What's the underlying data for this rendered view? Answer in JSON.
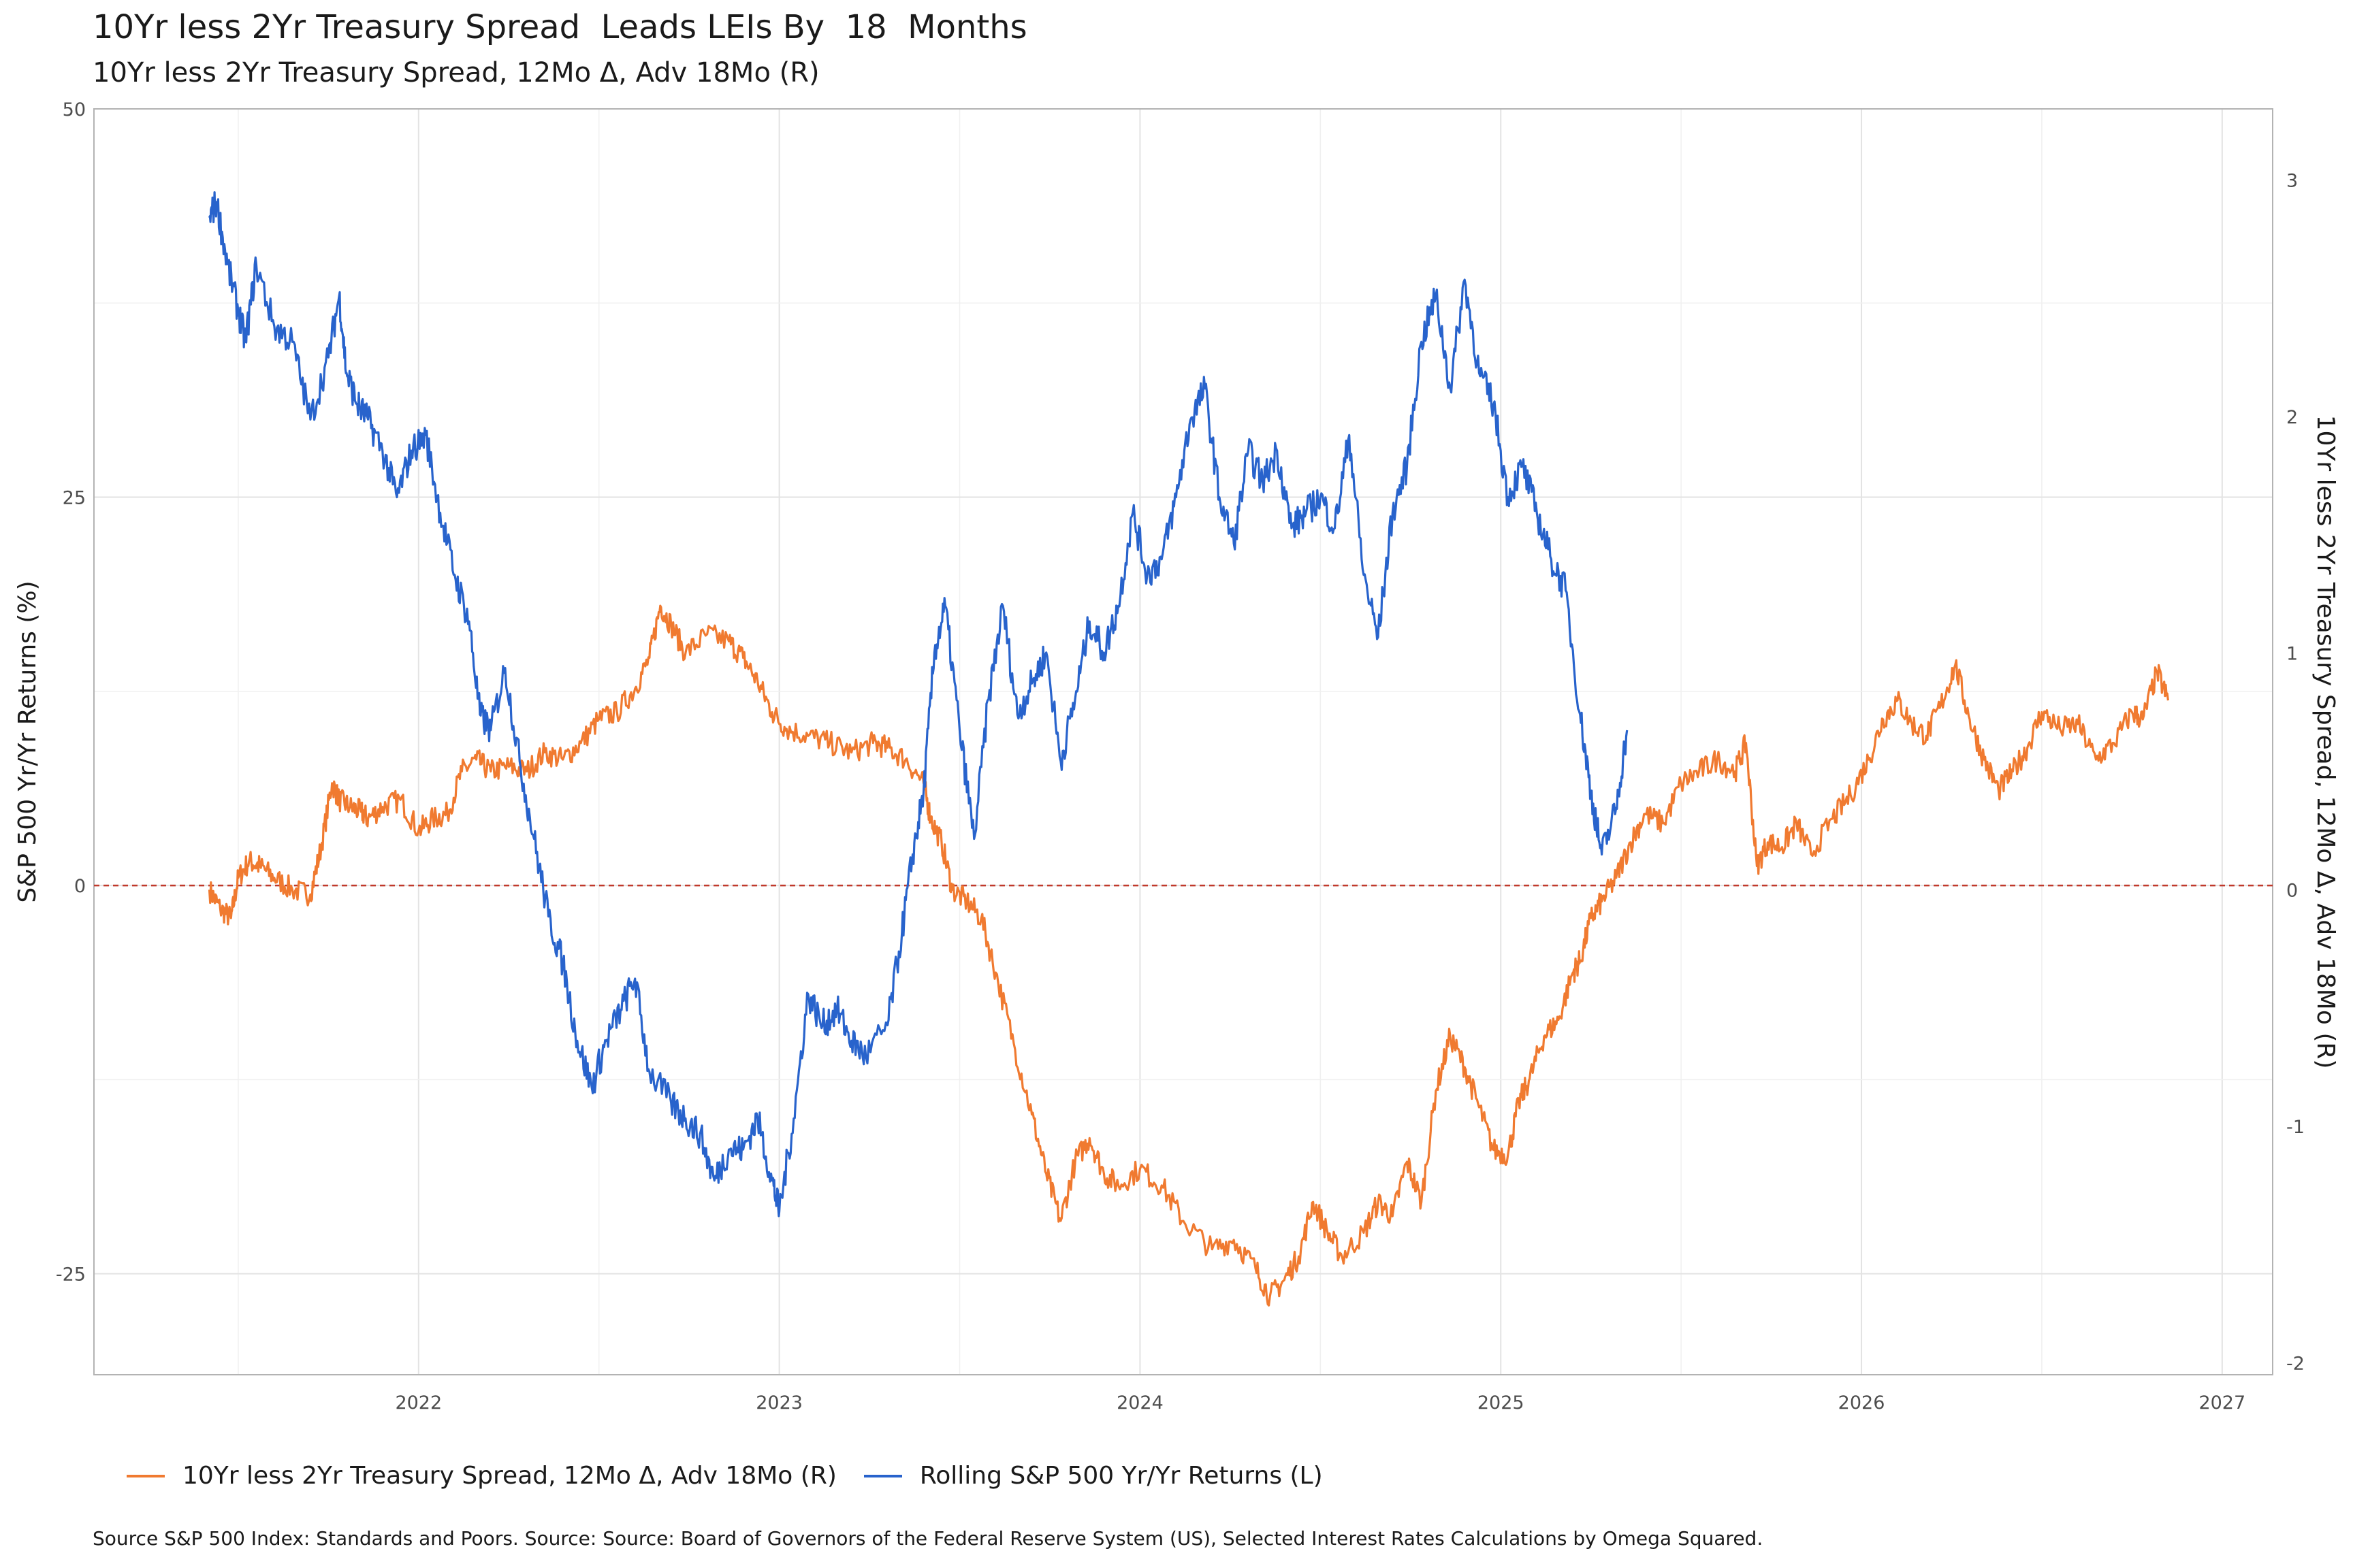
{
  "title": "10Yr less 2Yr Treasury Spread  Leads LEIs By  18  Months",
  "subtitle": "10Yr less 2Yr Treasury Spread, 12Mo Δ, Adv 18Mo (R)",
  "caption": "Source S&P 500 Index: Standards and Poors. Source: Source: Board of Governors of the Federal Reserve System (US), Selected Interest Rates Calculations by Omega Squared.",
  "chart_data": {
    "type": "line",
    "x_axis": {
      "ticks": [
        2022,
        2023,
        2024,
        2025,
        2026,
        2027
      ],
      "tick_labels": [
        "2022",
        "2023",
        "2024",
        "2025",
        "2026",
        "2027"
      ],
      "range": [
        2021.1,
        2027.14
      ]
    },
    "y_left": {
      "label": "S&P 500 Yr/Yr Returns (%)",
      "range": [
        -31.5,
        50
      ],
      "ticks": [
        -25,
        0,
        25,
        50
      ],
      "tick_labels": [
        "-25",
        "0",
        "25",
        "50"
      ]
    },
    "y_right": {
      "label": "10Yr less 2Yr Treasury Spread, 12Mo Δ, Adv 18Mo (R)",
      "range": [
        -2.05,
        3.3
      ],
      "ticks": [
        -2,
        -1,
        0,
        1,
        2,
        3
      ],
      "tick_labels": [
        "-2",
        "-1",
        "0",
        "1",
        "2",
        "3"
      ]
    },
    "reference_line": {
      "y": 0,
      "axis": "left",
      "style": "dashed",
      "color": "#c0392b"
    },
    "grid": true,
    "legend_position": "bottom",
    "series": [
      {
        "name": "10Yr less 2Yr Treasury Spread, 12Mo Δ, Adv 18Mo (R)",
        "axis": "right",
        "color": "#f07a30",
        "x": [
          2021.42,
          2021.45,
          2021.48,
          2021.5,
          2021.53,
          2021.56,
          2021.6,
          2021.65,
          2021.7,
          2021.73,
          2021.76,
          2021.78,
          2021.81,
          2021.84,
          2021.86,
          2021.9,
          2021.95,
          2022.0,
          2022.04,
          2022.08,
          2022.12,
          2022.16,
          2022.2,
          2022.25,
          2022.3,
          2022.35,
          2022.4,
          2022.45,
          2022.5,
          2022.55,
          2022.6,
          2022.64,
          2022.67,
          2022.7,
          2022.74,
          2022.8,
          2022.86,
          2022.9,
          2022.94,
          2022.98,
          2023.02,
          2023.08,
          2023.14,
          2023.2,
          2023.26,
          2023.3,
          2023.35,
          2023.4,
          2023.42,
          2023.45,
          2023.48,
          2023.52,
          2023.56,
          2023.6,
          2023.65,
          2023.7,
          2023.74,
          2023.78,
          2023.82,
          2023.86,
          2023.9,
          2023.94,
          2024.0,
          2024.06,
          2024.12,
          2024.2,
          2024.26,
          2024.32,
          2024.36,
          2024.4,
          2024.44,
          2024.48,
          2024.52,
          2024.56,
          2024.62,
          2024.66,
          2024.7,
          2024.74,
          2024.78,
          2024.82,
          2024.86,
          2024.9,
          2024.94,
          2024.98,
          2025.02,
          2025.05,
          2025.08,
          2025.12,
          2025.16,
          2025.2,
          2025.22,
          2025.25,
          2025.28,
          2025.32,
          2025.36,
          2025.4,
          2025.45,
          2025.5,
          2025.55,
          2025.6,
          2025.65,
          2025.68,
          2025.71,
          2025.74,
          2025.78,
          2025.82,
          2025.86,
          2025.92,
          2025.97,
          2026.02,
          2026.06,
          2026.1,
          2026.14,
          2026.18,
          2026.22,
          2026.26,
          2026.3,
          2026.34,
          2026.38,
          2026.42,
          2026.46,
          2026.5,
          2026.55,
          2026.6,
          2026.65,
          2026.7,
          2026.75,
          2026.78,
          2026.82,
          2026.85
        ],
        "y": [
          0.0,
          -0.08,
          -0.12,
          0.05,
          0.12,
          0.1,
          0.05,
          0.0,
          -0.02,
          0.18,
          0.45,
          0.38,
          0.35,
          0.33,
          0.3,
          0.35,
          0.38,
          0.25,
          0.3,
          0.32,
          0.5,
          0.55,
          0.5,
          0.52,
          0.5,
          0.58,
          0.55,
          0.62,
          0.72,
          0.75,
          0.85,
          0.98,
          1.2,
          1.12,
          1.0,
          1.08,
          1.05,
          0.98,
          0.88,
          0.75,
          0.68,
          0.65,
          0.62,
          0.58,
          0.62,
          0.6,
          0.55,
          0.45,
          0.3,
          0.2,
          0.0,
          -0.05,
          -0.12,
          -0.35,
          -0.65,
          -0.95,
          -1.2,
          -1.4,
          -1.15,
          -1.05,
          -1.2,
          -1.25,
          -1.18,
          -1.25,
          -1.4,
          -1.52,
          -1.48,
          -1.6,
          -1.72,
          -1.65,
          -1.55,
          -1.32,
          -1.45,
          -1.55,
          -1.45,
          -1.32,
          -1.38,
          -1.15,
          -1.32,
          -0.85,
          -0.62,
          -0.75,
          -0.92,
          -1.1,
          -1.12,
          -0.9,
          -0.8,
          -0.62,
          -0.55,
          -0.35,
          -0.3,
          -0.12,
          -0.05,
          0.05,
          0.2,
          0.32,
          0.28,
          0.45,
          0.5,
          0.55,
          0.5,
          0.62,
          0.1,
          0.2,
          0.18,
          0.28,
          0.15,
          0.3,
          0.4,
          0.55,
          0.72,
          0.8,
          0.7,
          0.65,
          0.78,
          0.95,
          0.72,
          0.55,
          0.42,
          0.5,
          0.6,
          0.75,
          0.68,
          0.7,
          0.55,
          0.62,
          0.75,
          0.72,
          0.92,
          0.8
        ],
        "jitter_right": 0.05
      },
      {
        "name": "Rolling S&P 500 Yr/Yr Returns (L)",
        "axis": "left",
        "color": "#2863cc",
        "x": [
          2021.42,
          2021.44,
          2021.47,
          2021.5,
          2021.52,
          2021.55,
          2021.6,
          2021.65,
          2021.7,
          2021.75,
          2021.78,
          2021.8,
          2021.83,
          2021.86,
          2021.9,
          2021.94,
          2021.98,
          2022.02,
          2022.06,
          2022.1,
          2022.14,
          2022.17,
          2022.2,
          2022.24,
          2022.28,
          2022.32,
          2022.36,
          2022.4,
          2022.44,
          2022.48,
          2022.52,
          2022.56,
          2022.6,
          2022.64,
          2022.7,
          2022.74,
          2022.78,
          2022.82,
          2022.86,
          2022.9,
          2022.94,
          2022.98,
          2023.0,
          2023.04,
          2023.08,
          2023.12,
          2023.16,
          2023.2,
          2023.24,
          2023.3,
          2023.34,
          2023.37,
          2023.4,
          2023.43,
          2023.46,
          2023.5,
          2023.54,
          2023.58,
          2023.62,
          2023.66,
          2023.7,
          2023.74,
          2023.78,
          2023.82,
          2023.86,
          2023.9,
          2023.94,
          2023.98,
          2024.02,
          2024.06,
          2024.1,
          2024.14,
          2024.18,
          2024.22,
          2024.26,
          2024.3,
          2024.34,
          2024.38,
          2024.42,
          2024.46,
          2024.5,
          2024.54,
          2024.58,
          2024.62,
          2024.66,
          2024.7,
          2024.74,
          2024.78,
          2024.82,
          2024.86,
          2024.9,
          2024.94,
          2024.98,
          2025.02,
          2025.06,
          2025.1,
          2025.14,
          2025.18,
          2025.22,
          2025.25,
          2025.28,
          2025.32,
          2025.35
        ],
        "y": [
          43,
          44,
          40,
          37,
          35,
          40,
          36,
          35,
          30,
          34,
          38,
          33,
          31,
          30,
          28,
          25,
          28,
          29,
          24,
          20,
          17,
          11,
          10,
          14,
          8,
          3,
          -2,
          -5,
          -10,
          -13,
          -10,
          -8,
          -6,
          -12,
          -14,
          -15,
          -16,
          -19,
          -17,
          -17,
          -15,
          -19,
          -21,
          -15,
          -7,
          -9,
          -8,
          -10,
          -11,
          -9,
          -3,
          2,
          6,
          15,
          18,
          10,
          3,
          12,
          18,
          11,
          13,
          15,
          8,
          12,
          17,
          15,
          18,
          24,
          20,
          21,
          25,
          30,
          32,
          25,
          22,
          28,
          26,
          28,
          23,
          24,
          25,
          23,
          29,
          20,
          16,
          24,
          27,
          35,
          38,
          32,
          39,
          33,
          31,
          25,
          27,
          24,
          21,
          19,
          11,
          6,
          2,
          5,
          10
        ],
        "jitter_left": 1.0
      }
    ]
  }
}
